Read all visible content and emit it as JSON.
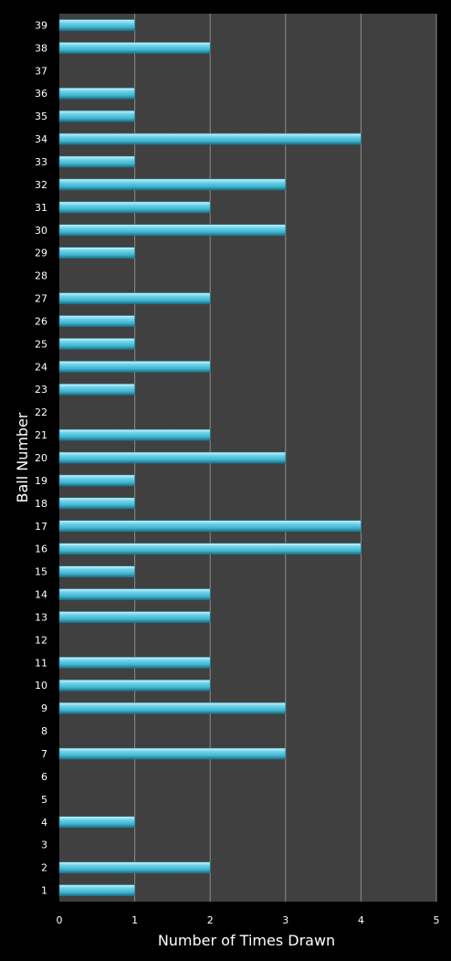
{
  "chart_data": {
    "type": "bar",
    "orientation": "horizontal",
    "xlabel": "Number of Times Drawn",
    "ylabel": "Ball Number",
    "xlim": [
      0,
      5
    ],
    "xticks": [
      0,
      1,
      2,
      3,
      4,
      5
    ],
    "grid": true,
    "legend": "none",
    "colors": {
      "background": "#000000",
      "plot_area": "#404040",
      "gridline": "#8c8c8c",
      "bar": "#4fc3de",
      "bar_highlight": "#b9eef9",
      "bar_shadow": "#1d7f95",
      "text": "#ffffff"
    },
    "categories": [
      "1",
      "2",
      "3",
      "4",
      "5",
      "6",
      "7",
      "8",
      "9",
      "10",
      "11",
      "12",
      "13",
      "14",
      "15",
      "16",
      "17",
      "18",
      "19",
      "20",
      "21",
      "22",
      "23",
      "24",
      "25",
      "26",
      "27",
      "28",
      "29",
      "30",
      "31",
      "32",
      "33",
      "34",
      "35",
      "36",
      "37",
      "38",
      "39"
    ],
    "values": [
      1,
      2,
      0,
      1,
      0,
      0,
      3,
      0,
      3,
      2,
      2,
      0,
      2,
      2,
      1,
      4,
      4,
      1,
      1,
      3,
      2,
      0,
      1,
      2,
      1,
      1,
      2,
      0,
      1,
      3,
      2,
      3,
      1,
      4,
      1,
      1,
      0,
      2,
      1
    ]
  }
}
